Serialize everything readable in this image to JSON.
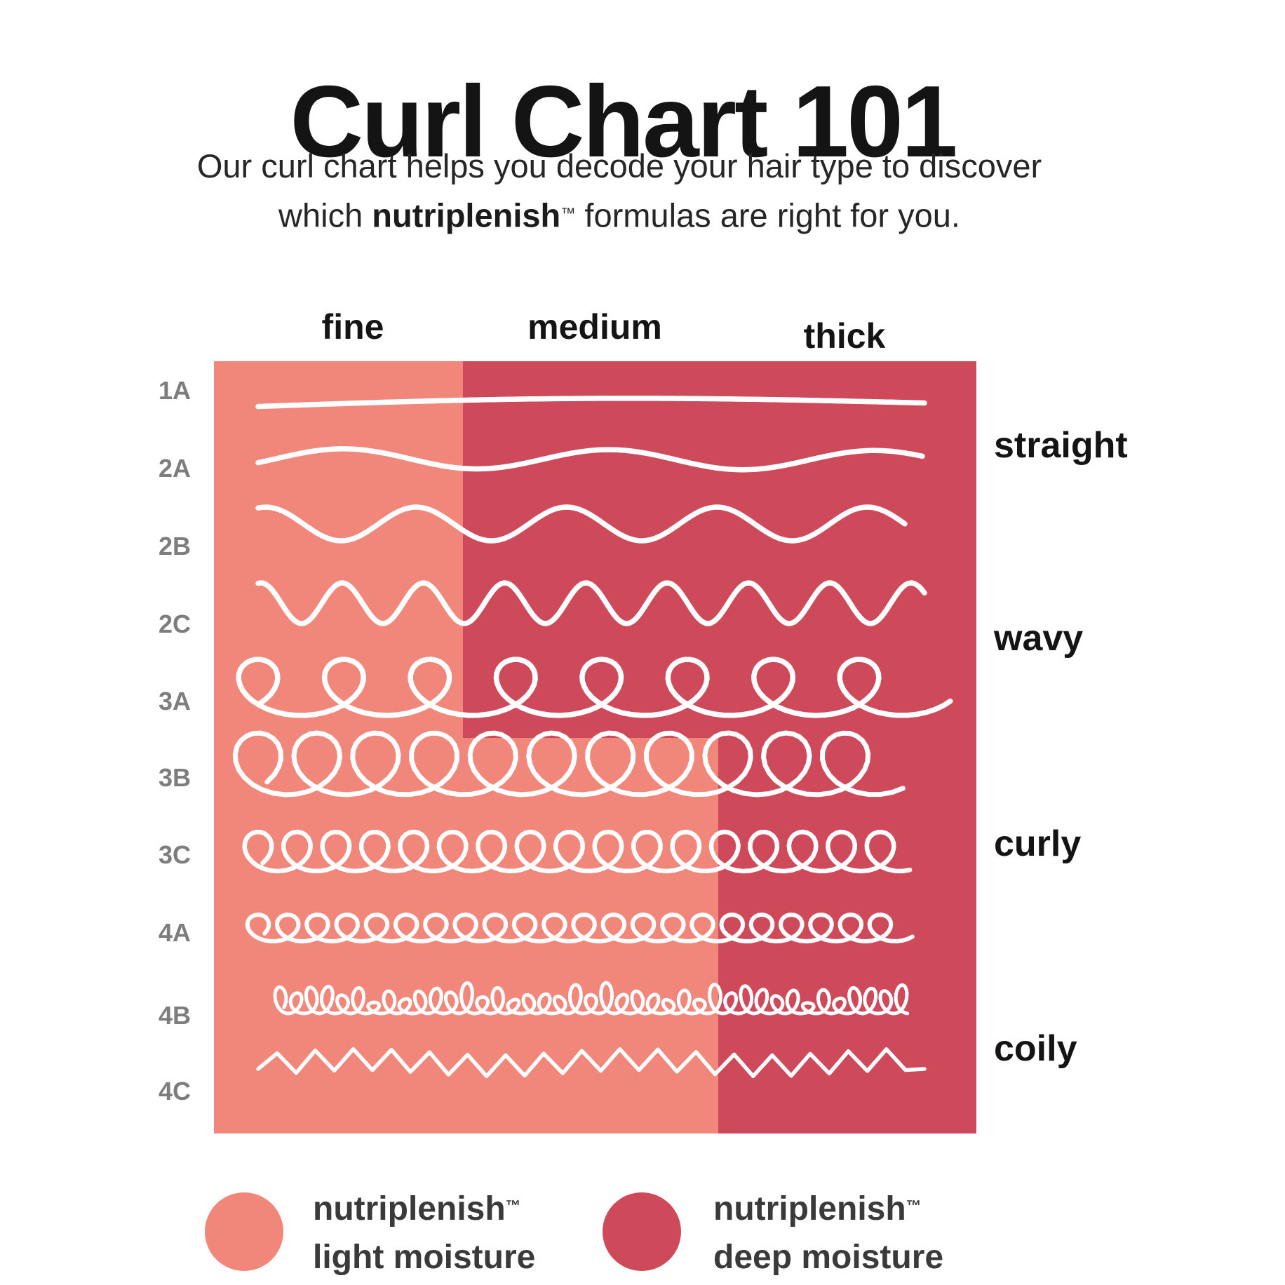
{
  "title": "Curl Chart 101",
  "subtitle": {
    "line1": "Our curl chart helps you decode your hair type to discover",
    "line2_prefix": "which ",
    "brand": "nutriplenish",
    "tm": "™",
    "line2_suffix": " formulas are right for you."
  },
  "columns": [
    {
      "id": "fine",
      "label": "fine"
    },
    {
      "id": "medium",
      "label": "medium"
    },
    {
      "id": "thick",
      "label": "thick"
    }
  ],
  "rows": [
    {
      "id": "1A",
      "pattern": "straight-line"
    },
    {
      "id": "2A",
      "pattern": "loose-wave"
    },
    {
      "id": "2B",
      "pattern": "soft-wave"
    },
    {
      "id": "2C",
      "pattern": "tight-wave"
    },
    {
      "id": "3A",
      "pattern": "loose-loops"
    },
    {
      "id": "3B",
      "pattern": "open-loops"
    },
    {
      "id": "3C",
      "pattern": "tight-loops"
    },
    {
      "id": "4A",
      "pattern": "small-coils"
    },
    {
      "id": "4B",
      "pattern": "dense-scribble"
    },
    {
      "id": "4C",
      "pattern": "zigzag"
    }
  ],
  "groups": [
    {
      "label": "straight",
      "rows": [
        "1A",
        "2A"
      ]
    },
    {
      "label": "wavy",
      "rows": [
        "2B",
        "2C",
        "3A"
      ]
    },
    {
      "label": "curly",
      "rows": [
        "3B",
        "3C",
        "4A"
      ]
    },
    {
      "label": "coily",
      "rows": [
        "4B",
        "4C"
      ]
    }
  ],
  "legend": [
    {
      "brand": "nutriplenish",
      "tm": "™",
      "label": "light moisture",
      "color_name": "light",
      "color": "#F1867A"
    },
    {
      "brand": "nutriplenish",
      "tm": "™",
      "label": "deep moisture",
      "color_name": "deep",
      "color": "#CE4A5B"
    }
  ],
  "colors": {
    "light_moisture": "#F1867A",
    "deep_moisture": "#CE4A5B",
    "curl_stroke": "#FFFFFF",
    "row_label_gray": "#7D7D7D",
    "heading_black": "#141414",
    "legend_text": "#3A3A3A",
    "background": "#FFFFFF"
  },
  "chart_data": {
    "type": "table",
    "title": "Curl Chart 101",
    "columns": [
      "fine",
      "medium",
      "thick"
    ],
    "rows": [
      "1A",
      "2A",
      "2B",
      "2C",
      "3A",
      "3B",
      "3C",
      "4A",
      "4B",
      "4C"
    ],
    "row_groups": [
      {
        "label": "straight",
        "rows": [
          "1A",
          "2A"
        ]
      },
      {
        "label": "wavy",
        "rows": [
          "2B",
          "2C",
          "3A"
        ]
      },
      {
        "label": "curly",
        "rows": [
          "3B",
          "3C",
          "4A"
        ]
      },
      {
        "label": "coily",
        "rows": [
          "4B",
          "4C"
        ]
      }
    ],
    "cells": {
      "1A": [
        "light moisture",
        "deep moisture",
        "deep moisture"
      ],
      "2A": [
        "light moisture",
        "deep moisture",
        "deep moisture"
      ],
      "2B": [
        "light moisture",
        "deep moisture",
        "deep moisture"
      ],
      "2C": [
        "light moisture",
        "deep moisture",
        "deep moisture"
      ],
      "3A": [
        "light moisture",
        "deep moisture",
        "deep moisture"
      ],
      "3B": [
        "light moisture",
        "light moisture",
        "deep moisture"
      ],
      "3C": [
        "light moisture",
        "light moisture",
        "deep moisture"
      ],
      "4A": [
        "light moisture",
        "light moisture",
        "deep moisture"
      ],
      "4B": [
        "light moisture",
        "light moisture",
        "deep moisture"
      ],
      "4C": [
        "light moisture",
        "light moisture",
        "deep moisture"
      ]
    },
    "legend_colors": {
      "light moisture": "#F1867A",
      "deep moisture": "#CE4A5B"
    }
  }
}
